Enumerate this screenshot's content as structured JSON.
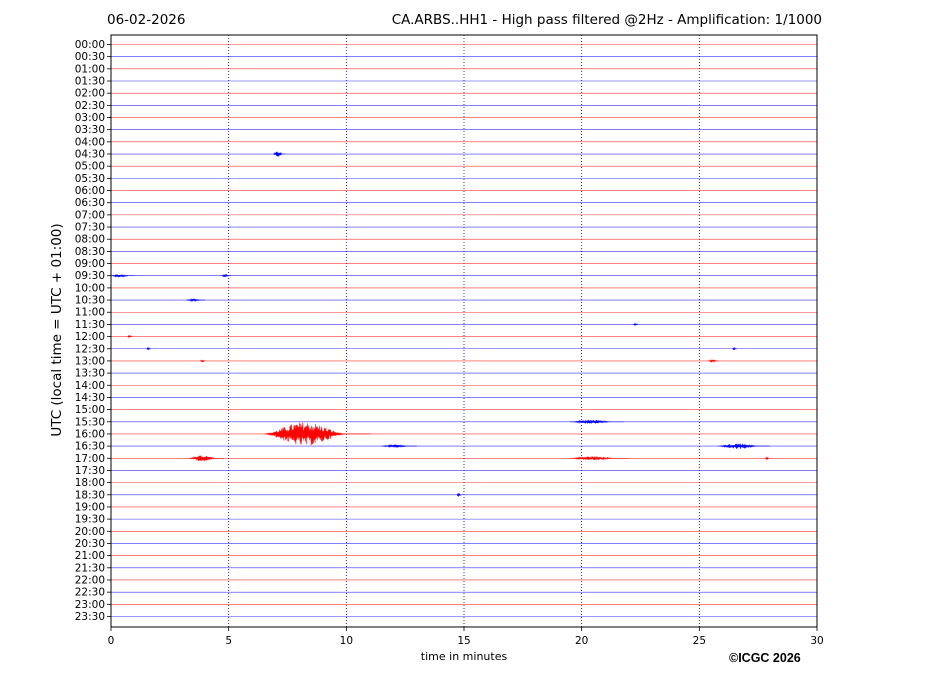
{
  "header": {
    "date": "06-02-2026",
    "title": "CA.ARBS..HH1 - High pass filtered @2Hz - Amplification: 1/1000"
  },
  "footer": {
    "copyright": "©ICGC 2026"
  },
  "colors": {
    "red_trace": "#ff0000",
    "blue_trace": "#0000ff",
    "grid": "#000080"
  },
  "chart_data": {
    "type": "line",
    "title": "CA.ARBS..HH1 - High pass filtered @2Hz - Amplification: 1/1000",
    "xlabel": "time in minutes",
    "ylabel": "UTC (local time = UTC + 01:00)",
    "xlim": [
      0,
      30
    ],
    "xticks": [
      0,
      5,
      10,
      15,
      20,
      25,
      30
    ],
    "vertical_gridlines_at": [
      5,
      10,
      15,
      20,
      25
    ],
    "rows": [
      "00:00",
      "00:30",
      "01:00",
      "01:30",
      "02:00",
      "02:30",
      "03:00",
      "03:30",
      "04:00",
      "04:30",
      "05:00",
      "05:30",
      "06:00",
      "06:30",
      "07:00",
      "07:30",
      "08:00",
      "08:30",
      "09:00",
      "09:30",
      "10:00",
      "10:30",
      "11:00",
      "11:30",
      "12:00",
      "12:30",
      "13:00",
      "13:30",
      "14:00",
      "14:30",
      "15:00",
      "15:30",
      "16:00",
      "16:30",
      "17:00",
      "17:30",
      "18:00",
      "18:30",
      "19:00",
      "19:30",
      "20:00",
      "20:30",
      "21:00",
      "21:30",
      "22:00",
      "22:30",
      "23:00",
      "23:30"
    ],
    "row_colors": "alternating red/blue starting with red at 00:00",
    "events": [
      {
        "row": "04:30",
        "start_min": 6.9,
        "end_min": 7.4,
        "amplitude": 3
      },
      {
        "row": "09:30",
        "start_min": 0.0,
        "end_min": 1.0,
        "amplitude": 1.5
      },
      {
        "row": "09:30",
        "start_min": 4.7,
        "end_min": 5.1,
        "amplitude": 1.5
      },
      {
        "row": "10:30",
        "start_min": 3.2,
        "end_min": 4.0,
        "amplitude": 1.2
      },
      {
        "row": "11:30",
        "start_min": 22.2,
        "end_min": 22.4,
        "amplitude": 1.2
      },
      {
        "row": "12:00",
        "start_min": 0.7,
        "end_min": 0.9,
        "amplitude": 1.5
      },
      {
        "row": "12:30",
        "start_min": 1.5,
        "end_min": 1.7,
        "amplitude": 2
      },
      {
        "row": "12:30",
        "start_min": 26.4,
        "end_min": 26.6,
        "amplitude": 1.5
      },
      {
        "row": "13:00",
        "start_min": 3.8,
        "end_min": 4.0,
        "amplitude": 1.5
      },
      {
        "row": "13:00",
        "start_min": 25.4,
        "end_min": 25.8,
        "amplitude": 1.5
      },
      {
        "row": "15:30",
        "start_min": 19.5,
        "end_min": 21.8,
        "amplitude": 2
      },
      {
        "row": "16:00",
        "start_min": 6.5,
        "end_min": 11.0,
        "amplitude": 12
      },
      {
        "row": "16:30",
        "start_min": 11.5,
        "end_min": 13.0,
        "amplitude": 1.5
      },
      {
        "row": "16:30",
        "start_min": 25.8,
        "end_min": 28.0,
        "amplitude": 3
      },
      {
        "row": "17:00",
        "start_min": 3.3,
        "end_min": 4.8,
        "amplitude": 3
      },
      {
        "row": "17:00",
        "start_min": 19.5,
        "end_min": 22.0,
        "amplitude": 2
      },
      {
        "row": "17:00",
        "start_min": 27.8,
        "end_min": 28.0,
        "amplitude": 1.5
      },
      {
        "row": "18:30",
        "start_min": 14.7,
        "end_min": 14.9,
        "amplitude": 2.5
      }
    ]
  }
}
